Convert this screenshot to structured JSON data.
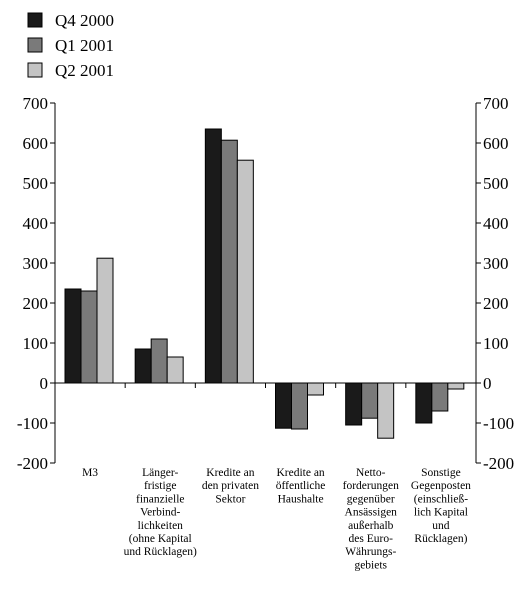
{
  "chart_data": {
    "type": "bar",
    "title": "",
    "xlabel": "",
    "ylabel": "",
    "ylim": [
      -200,
      700
    ],
    "yticks": [
      -200,
      -100,
      0,
      100,
      200,
      300,
      400,
      500,
      600,
      700
    ],
    "grid": false,
    "legend_position": "top-left",
    "secondary_y_axis": true,
    "categories": [
      [
        "M3"
      ],
      [
        "Länger-",
        "fristige",
        "finanzielle",
        "Verbind-",
        "lichkeiten",
        "(ohne Kapital",
        "und Rücklagen)"
      ],
      [
        "Kredite an",
        "den privaten",
        "Sektor"
      ],
      [
        "Kredite an",
        "öffentliche",
        "Haushalte"
      ],
      [
        "Netto-",
        "forderungen",
        "gegenüber",
        "Ansässigen",
        "außerhalb",
        "des Euro-",
        "Währungs-",
        "gebiets"
      ],
      [
        "Sonstige",
        "Gegenposten",
        "(einschließ-",
        "lich Kapital",
        "und",
        "Rücklagen)"
      ]
    ],
    "series": [
      {
        "name": "Q4 2000",
        "color": "#1a1a1a",
        "values": [
          235,
          85,
          635,
          -113,
          -105,
          -100
        ]
      },
      {
        "name": "Q1 2001",
        "color": "#7a7a7a",
        "values": [
          230,
          110,
          607,
          -115,
          -88,
          -70
        ]
      },
      {
        "name": "Q2 2001",
        "color": "#c4c4c4",
        "values": [
          312,
          65,
          557,
          -30,
          -138,
          -15
        ]
      }
    ]
  }
}
